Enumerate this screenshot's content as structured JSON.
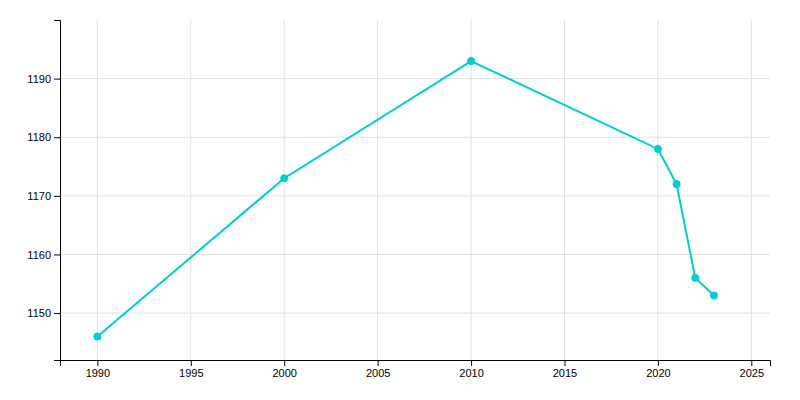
{
  "chart_data": {
    "type": "line",
    "x": [
      1990,
      2000,
      2010,
      2020,
      2021,
      2022,
      2023
    ],
    "values": [
      1146,
      1173,
      1193,
      1178,
      1172,
      1156,
      1153
    ],
    "color": "#00CED1",
    "marker": "circle",
    "xlim": [
      1988,
      2026
    ],
    "ylim": [
      1142,
      1200
    ],
    "xticks": [
      1990,
      1995,
      2000,
      2005,
      2010,
      2015,
      2020,
      2025
    ],
    "yticks": [
      1150,
      1160,
      1170,
      1180,
      1190
    ],
    "grid": true
  }
}
